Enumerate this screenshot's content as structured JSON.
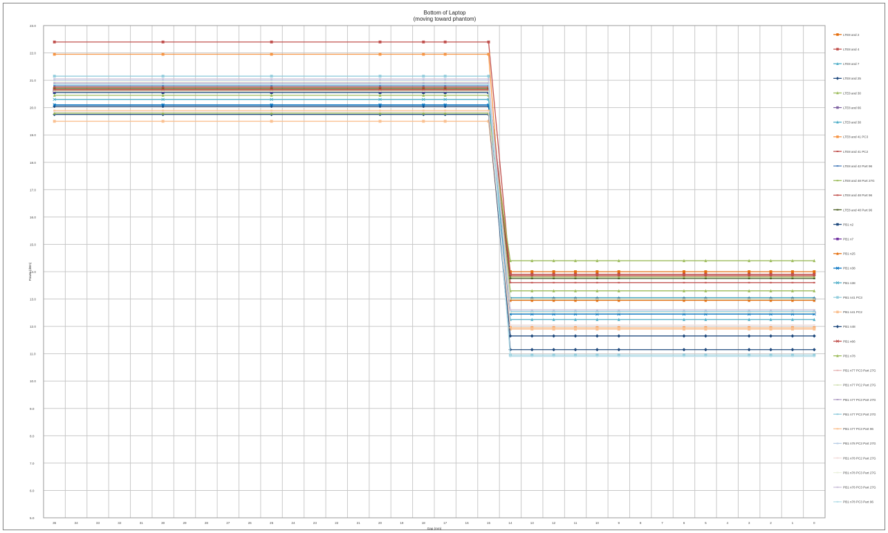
{
  "chart_data": {
    "type": "line",
    "title": "Bottom of Laptop",
    "subtitle": "(moving toward phantom)",
    "xlabel": "Gap (mm)",
    "ylabel": "Power (dBm)",
    "ylim": [
      5.0,
      23.0
    ],
    "yticks": [
      "5.0",
      "6.0",
      "7.0",
      "8.0",
      "9.0",
      "10.0",
      "11.0",
      "12.0",
      "13.0",
      "14.0",
      "15.0",
      "16.0",
      "17.0",
      "18.0",
      "19.0",
      "20.0",
      "21.0",
      "22.0",
      "23.0"
    ],
    "categories": [
      "35",
      "34",
      "33",
      "32",
      "31",
      "30",
      "29",
      "28",
      "27",
      "26",
      "25",
      "24",
      "23",
      "22",
      "21",
      "20",
      "19",
      "18",
      "17",
      "16",
      "15",
      "14",
      "13",
      "12",
      "11",
      "10",
      "9",
      "8",
      "7",
      "6",
      "5",
      "4",
      "3",
      "2",
      "1",
      "0"
    ],
    "grid": true,
    "legend_position": "right",
    "series": [
      {
        "name": "LTE8 and 2",
        "color": "#e46c0a",
        "marker": "square",
        "before": 20.7,
        "after": 14.0
      },
      {
        "name": "LTE8 and 4",
        "color": "#c0504d",
        "marker": "square",
        "before": 22.4,
        "after": 13.9
      },
      {
        "name": "LTE8 and 7",
        "color": "#4bacc6",
        "marker": "triangle",
        "before": 20.1,
        "after": 12.25
      },
      {
        "name": "LTE8 and 25",
        "color": "#1f497d",
        "marker": "diamond",
        "before": 20.05,
        "after": 11.15
      },
      {
        "name": "LTE8 and 30",
        "color": "#9bbb59",
        "marker": "triangle",
        "before": 20.45,
        "after": 13.3
      },
      {
        "name": "LTE8 and 66",
        "color": "#8064a2",
        "marker": "square",
        "before": 20.65,
        "after": 12.5
      },
      {
        "name": "LTE8 and 38",
        "color": "#4bacc6",
        "marker": "triangle",
        "before": 20.55,
        "after": 13.05
      },
      {
        "name": "LTE8 and 41 PC3",
        "color": "#f79646",
        "marker": "square",
        "before": 21.95,
        "after": 11.95
      },
      {
        "name": "LTE8 and 41 PC2",
        "color": "#c0504d",
        "marker": "none",
        "before": 20.75,
        "after": 13.6
      },
      {
        "name": "LTE8 and 42 Part 96",
        "color": "#4f81bd",
        "marker": "none",
        "before": 20.8,
        "after": 13.75
      },
      {
        "name": "LTE8 and 48 Part 27G",
        "color": "#9bbb59",
        "marker": "none",
        "before": 20.75,
        "after": 13.8
      },
      {
        "name": "LTE8 and 48 Part 96",
        "color": "#c0504d",
        "marker": "none",
        "before": 20.75,
        "after": 13.85
      },
      {
        "name": "LTE8 and 48 Part 96",
        "color": "#4f6228",
        "marker": "none",
        "before": 20.7,
        "after": 13.75
      },
      {
        "name": "PB1 n2",
        "color": "#1f497d",
        "marker": "square",
        "before": 20.55,
        "after": 13.0
      },
      {
        "name": "PB1 n7",
        "color": "#7030a0",
        "marker": "square",
        "before": 20.6,
        "after": 12.5
      },
      {
        "name": "PB1 n25",
        "color": "#e46c0a",
        "marker": "triangle",
        "before": 20.65,
        "after": 12.95
      },
      {
        "name": "PB1 n38",
        "color": "#0070c0",
        "marker": "cross",
        "before": 20.1,
        "after": 12.45
      },
      {
        "name": "PB1 n38",
        "color": "#4bacc6",
        "marker": "cross",
        "before": 20.3,
        "after": 12.5
      },
      {
        "name": "PB1 n41 PC3",
        "color": "#93cddd",
        "marker": "square",
        "before": 21.15,
        "after": 10.95
      },
      {
        "name": "PB1 n41 PC2",
        "color": "#fac090",
        "marker": "square",
        "before": 19.5,
        "after": 11.9
      },
      {
        "name": "PB1 n48",
        "color": "#1f497d",
        "marker": "diamond",
        "before": 19.75,
        "after": 11.65
      },
      {
        "name": "PB1 n66",
        "color": "#c0504d",
        "marker": "cross",
        "before": 20.65,
        "after": 13.9
      },
      {
        "name": "PB1 n78",
        "color": "#9bbb59",
        "marker": "triangle",
        "before": 19.8,
        "after": 14.4
      },
      {
        "name": "PB1 n77 PC3 Part 27G",
        "color": "#e6b9b8",
        "marker": "none",
        "before": 20.6,
        "after": 13.0
      },
      {
        "name": "PB1 n77 PC2 Part 27G",
        "color": "#d7e4bd",
        "marker": "none",
        "before": 20.6,
        "after": 13.0
      },
      {
        "name": "PB1 n77 PC3 Part 27G",
        "color": "#b3a2c7",
        "marker": "none",
        "before": 20.9,
        "after": 12.6
      },
      {
        "name": "PB1 n77 PC3 Part 27G",
        "color": "#93cddd",
        "marker": "none",
        "before": 20.85,
        "after": 12.55
      },
      {
        "name": "PB1 n77 PC3 Part 96",
        "color": "#fac090",
        "marker": "none",
        "before": 19.9,
        "after": 11.95
      },
      {
        "name": "PB1 n78 PC3 Part 27G",
        "color": "#b9cde5",
        "marker": "none",
        "before": 21.0,
        "after": 12.5
      },
      {
        "name": "PB1 n78 PC2 Part 27G",
        "color": "#f2dcdb",
        "marker": "none",
        "before": 19.85,
        "after": 12.05
      },
      {
        "name": "PB1 n78 PC3 Part 27G",
        "color": "#ebf1de",
        "marker": "none",
        "before": 20.95,
        "after": 12.5
      },
      {
        "name": "PB1 n78 PC3 Part 27G",
        "color": "#ccc1da",
        "marker": "none",
        "before": 21.05,
        "after": 12.6
      },
      {
        "name": "PB1 n78 PC3 Part 96",
        "color": "#b7dee8",
        "marker": "none",
        "before": 20.85,
        "after": 10.9
      }
    ],
    "marker_categories": [
      "35",
      "30",
      "25",
      "20",
      "15",
      "10",
      "5",
      "0",
      "18",
      "17",
      "14",
      "11",
      "13",
      "12",
      "9",
      "6",
      "3",
      "2",
      "1"
    ]
  }
}
